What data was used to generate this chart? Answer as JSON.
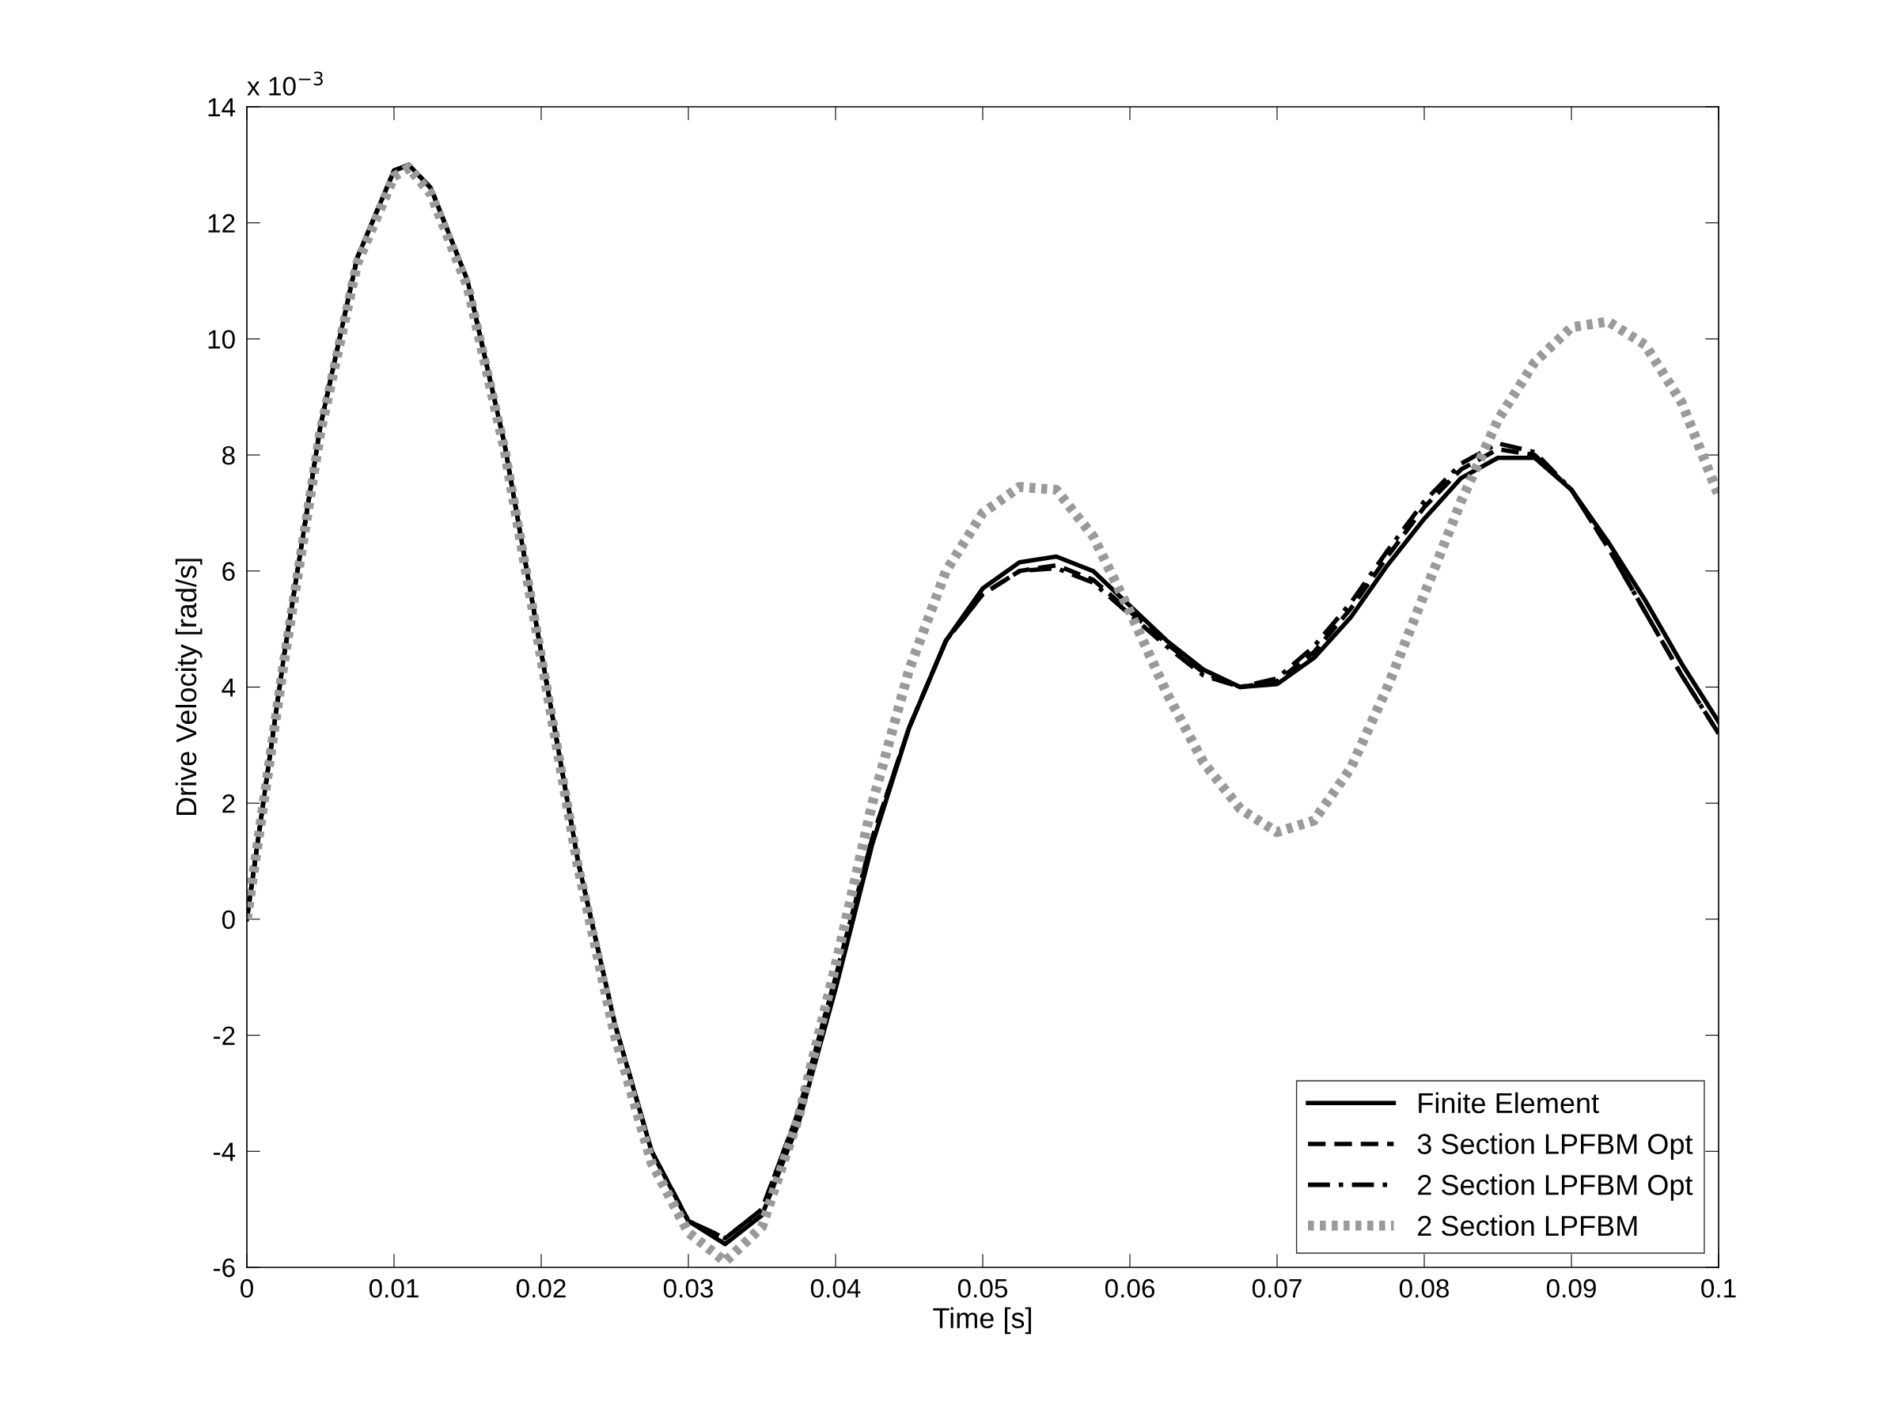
{
  "chart_data": {
    "type": "line",
    "xlabel": "Time [s]",
    "ylabel": "Drive Velocity [rad/s]",
    "annotations": [
      "x 10$^{−3}$"
    ],
    "x": [
      0,
      0.0025,
      0.005,
      0.0075,
      0.01,
      0.011,
      0.0125,
      0.015,
      0.0175,
      0.02,
      0.0225,
      0.025,
      0.0275,
      0.03,
      0.0325,
      0.035,
      0.0375,
      0.04,
      0.0425,
      0.045,
      0.0475,
      0.05,
      0.0525,
      0.055,
      0.0575,
      0.06,
      0.0625,
      0.065,
      0.0675,
      0.07,
      0.0725,
      0.075,
      0.0775,
      0.08,
      0.0825,
      0.085,
      0.0875,
      0.09,
      0.0925,
      0.095,
      0.0975,
      0.1
    ],
    "xlim": [
      0,
      0.1
    ],
    "xticks": [
      0,
      0.01,
      0.02,
      0.03,
      0.04,
      0.05,
      0.06,
      0.07,
      0.08,
      0.09,
      0.1
    ],
    "ylim": [
      -6,
      14
    ],
    "yticks": [
      -6,
      -4,
      -2,
      0,
      2,
      4,
      6,
      8,
      10,
      12,
      14
    ],
    "grid": false,
    "legend": "bottom right",
    "marker": "none",
    "series": [
      {
        "name": "Finite Element",
        "color": "#000000",
        "line_style": "solid",
        "values": [
          0,
          4.5,
          8.5,
          11.4,
          12.9,
          13.0,
          12.6,
          11.0,
          8.2,
          4.6,
          1.0,
          -1.8,
          -4.0,
          -5.2,
          -5.6,
          -5.1,
          -3.5,
          -1.2,
          1.3,
          3.3,
          4.8,
          5.7,
          6.15,
          6.25,
          6.0,
          5.4,
          4.8,
          4.3,
          4.0,
          4.05,
          4.5,
          5.2,
          6.1,
          6.9,
          7.6,
          7.95,
          7.95,
          7.4,
          6.5,
          5.5,
          4.4,
          3.4
        ]
      },
      {
        "name": "3 Section LPFBM Opt",
        "color": "#000000",
        "line_style": "dashed",
        "values": [
          0,
          4.5,
          8.5,
          11.4,
          12.9,
          13.0,
          12.6,
          11.0,
          8.2,
          4.6,
          1.0,
          -1.8,
          -4.0,
          -5.2,
          -5.5,
          -5.0,
          -3.3,
          -1.0,
          1.4,
          3.3,
          4.8,
          5.6,
          6.0,
          6.1,
          5.85,
          5.3,
          4.75,
          4.25,
          4.0,
          4.1,
          4.6,
          5.35,
          6.25,
          7.1,
          7.75,
          8.1,
          8.0,
          7.4,
          6.4,
          5.3,
          4.2,
          3.2
        ]
      },
      {
        "name": "2 Section LPFBM Opt",
        "color": "#000000",
        "line_style": "dashdot",
        "values": [
          0,
          4.5,
          8.5,
          11.4,
          12.9,
          13.0,
          12.6,
          11.0,
          8.2,
          4.6,
          1.0,
          -1.8,
          -4.0,
          -5.2,
          -5.5,
          -5.0,
          -3.3,
          -1.0,
          1.4,
          3.3,
          4.8,
          5.6,
          6.0,
          6.05,
          5.8,
          5.25,
          4.7,
          4.2,
          4.0,
          4.15,
          4.7,
          5.45,
          6.35,
          7.2,
          7.85,
          8.2,
          8.05,
          7.4,
          6.4,
          5.3,
          4.2,
          3.2
        ]
      },
      {
        "name": "2 Section LPFBM",
        "color": "#9a9a9a",
        "line_style": "dotted",
        "values": [
          0,
          4.4,
          8.4,
          11.3,
          12.8,
          12.95,
          12.5,
          10.9,
          8.1,
          4.5,
          0.9,
          -2.0,
          -4.2,
          -5.4,
          -5.9,
          -5.3,
          -3.4,
          -0.8,
          2.0,
          4.3,
          6.0,
          7.0,
          7.45,
          7.4,
          6.6,
          5.3,
          3.9,
          2.7,
          1.9,
          1.5,
          1.7,
          2.6,
          4.0,
          5.6,
          7.2,
          8.6,
          9.6,
          10.2,
          10.3,
          9.9,
          8.9,
          7.3
        ]
      }
    ]
  }
}
